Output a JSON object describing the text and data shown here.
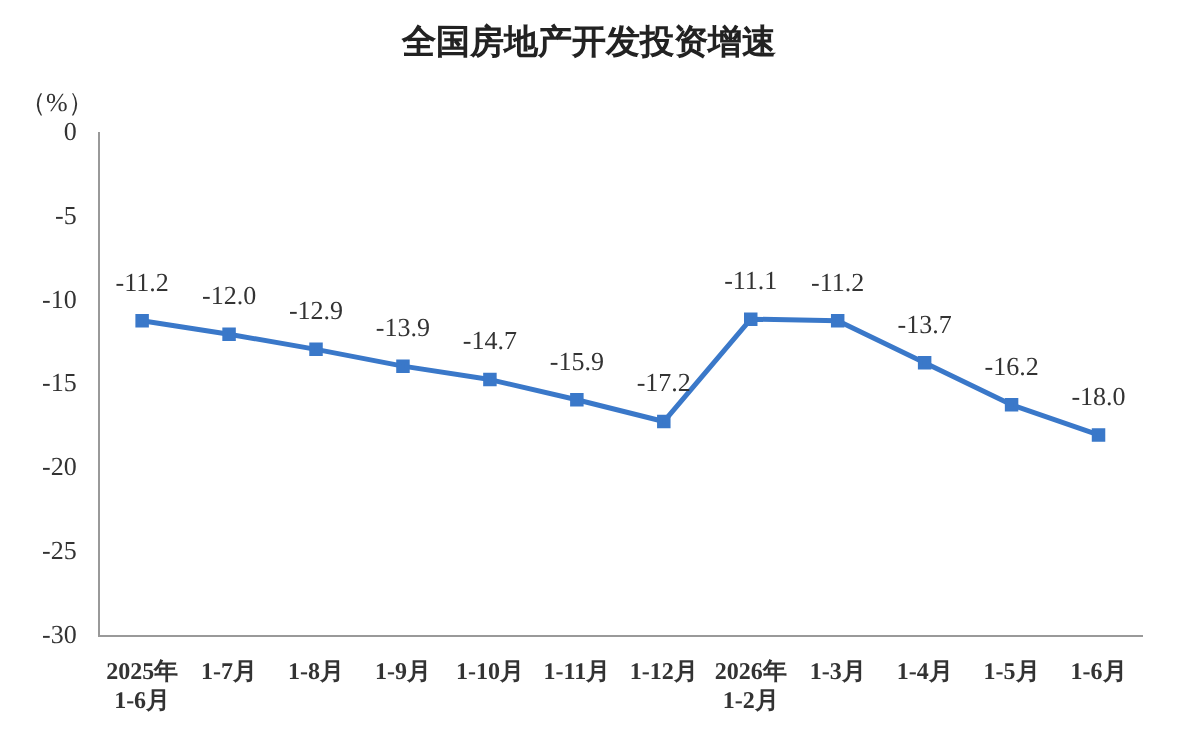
{
  "chart_data": {
    "type": "line",
    "title": "全国房地产开发投资增速",
    "ylabel": "（%）",
    "categories": [
      "2025年\n1-6月",
      "1-7月",
      "1-8月",
      "1-9月",
      "1-10月",
      "1-11月",
      "1-12月",
      "2026年\n1-2月",
      "1-3月",
      "1-4月",
      "1-5月",
      "1-6月"
    ],
    "series": [
      {
        "color": "#3a78c9",
        "values": [
          -11.2,
          -12.0,
          -12.9,
          -13.9,
          -14.7,
          -15.9,
          -17.2,
          -11.1,
          -11.2,
          -13.7,
          -16.2,
          -18.0
        ],
        "value_labels": [
          "-11.2",
          "-12.0",
          "-12.9",
          "-13.9",
          "-14.7",
          "-15.9",
          "-17.2",
          "-11.1",
          "-11.2",
          "-13.7",
          "-16.2",
          "-18.0"
        ]
      }
    ],
    "ylim": [
      -30,
      0
    ],
    "yticks": [
      0,
      -5,
      -10,
      -15,
      -20,
      -25,
      -30
    ],
    "grid": false,
    "legend": false,
    "marker": "square",
    "line_style": "solid"
  }
}
